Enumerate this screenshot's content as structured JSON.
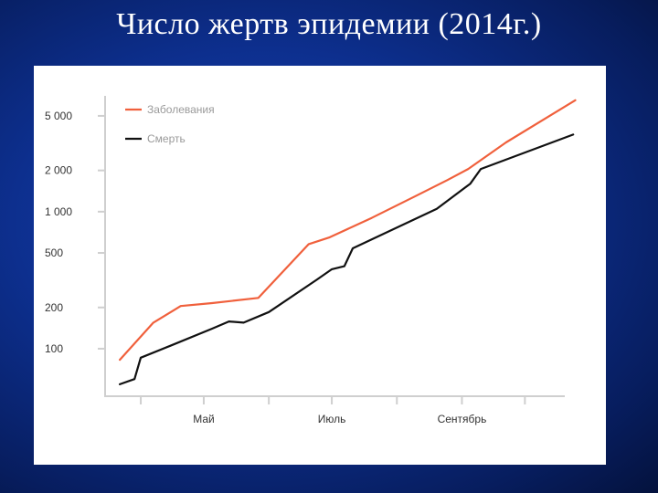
{
  "slide": {
    "title": "Число жертв эпидемии (2014г.)"
  },
  "chart_data": {
    "type": "line",
    "title": "",
    "xlabel": "",
    "ylabel": "",
    "y_scale": "log",
    "ylim": [
      45,
      7000
    ],
    "xlim": [
      "2014-03-15",
      "2014-10-20"
    ],
    "y_ticks": [
      {
        "value": 100,
        "label": "100"
      },
      {
        "value": 200,
        "label": "200"
      },
      {
        "value": 500,
        "label": "500"
      },
      {
        "value": 1000,
        "label": "1 000"
      },
      {
        "value": 2000,
        "label": "2 000"
      },
      {
        "value": 5000,
        "label": "5 000"
      }
    ],
    "x_labels": [
      {
        "date": "2014-05-01",
        "label": "Май"
      },
      {
        "date": "2014-07-01",
        "label": "Июль"
      },
      {
        "date": "2014-09-01",
        "label": "Сентябрь"
      }
    ],
    "x_ticks": [
      "2014-04-01",
      "2014-05-01",
      "2014-06-01",
      "2014-07-01",
      "2014-08-01",
      "2014-09-01",
      "2014-10-01"
    ],
    "legend_position": "top-left",
    "grid": false,
    "series": [
      {
        "name": "Заболевания",
        "color": "#f0603c",
        "points": [
          [
            "2014-03-22",
            83
          ],
          [
            "2014-04-07",
            155
          ],
          [
            "2014-04-17",
            192
          ],
          [
            "2014-04-20",
            205
          ],
          [
            "2014-05-05",
            215
          ],
          [
            "2014-05-27",
            235
          ],
          [
            "2014-06-20",
            580
          ],
          [
            "2014-06-30",
            650
          ],
          [
            "2014-07-20",
            900
          ],
          [
            "2014-08-10",
            1300
          ],
          [
            "2014-08-25",
            1700
          ],
          [
            "2014-09-04",
            2050
          ],
          [
            "2014-09-22",
            3200
          ],
          [
            "2014-10-25",
            6500
          ]
        ]
      },
      {
        "name": "Смерть",
        "color": "#111111",
        "points": [
          [
            "2014-03-22",
            55
          ],
          [
            "2014-03-29",
            60
          ],
          [
            "2014-04-01",
            86
          ],
          [
            "2014-04-15",
            105
          ],
          [
            "2014-05-05",
            140
          ],
          [
            "2014-05-13",
            158
          ],
          [
            "2014-05-20",
            155
          ],
          [
            "2014-06-01",
            185
          ],
          [
            "2014-06-24",
            320
          ],
          [
            "2014-07-01",
            380
          ],
          [
            "2014-07-07",
            400
          ],
          [
            "2014-07-11",
            540
          ],
          [
            "2014-08-20",
            1050
          ],
          [
            "2014-09-05",
            1600
          ],
          [
            "2014-09-10",
            2050
          ],
          [
            "2014-10-24",
            3650
          ]
        ]
      }
    ]
  }
}
